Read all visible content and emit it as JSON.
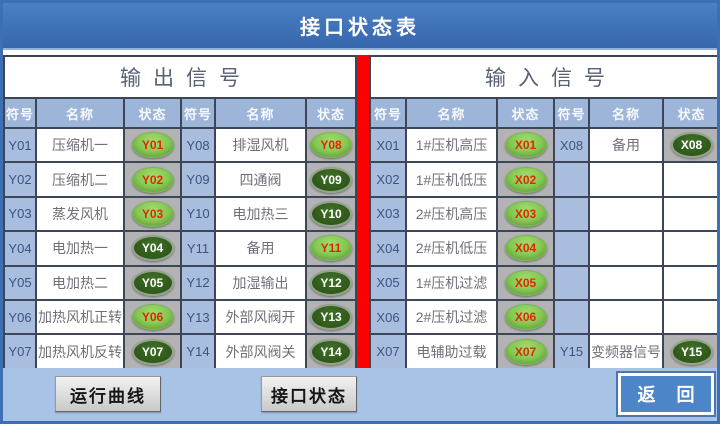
{
  "title": "接口状态表",
  "sections": {
    "output": "输出信号",
    "input": "输入信号"
  },
  "columns": [
    "符号",
    "名称",
    "状态"
  ],
  "groups": [
    {
      "rows": [
        {
          "symbol": "Y01",
          "label": "压缩机一",
          "state": "on"
        },
        {
          "symbol": "Y02",
          "label": "压缩机二",
          "state": "on"
        },
        {
          "symbol": "Y03",
          "label": "蒸发风机",
          "state": "on"
        },
        {
          "symbol": "Y04",
          "label": "电加热一",
          "state": "off"
        },
        {
          "symbol": "Y05",
          "label": "电加热二",
          "state": "off"
        },
        {
          "symbol": "Y06",
          "label": "加热风机正转",
          "state": "on"
        },
        {
          "symbol": "Y07",
          "label": "加热风机反转",
          "state": "off"
        }
      ]
    },
    {
      "rows": [
        {
          "symbol": "Y08",
          "label": "排湿风机",
          "state": "on"
        },
        {
          "symbol": "Y09",
          "label": "四通阀",
          "state": "off"
        },
        {
          "symbol": "Y10",
          "label": "电加热三",
          "state": "off"
        },
        {
          "symbol": "Y11",
          "label": "备用",
          "state": "on"
        },
        {
          "symbol": "Y12",
          "label": "加湿输出",
          "state": "off"
        },
        {
          "symbol": "Y13",
          "label": "外部风阀开",
          "state": "off"
        },
        {
          "symbol": "Y14",
          "label": "外部风阀关",
          "state": "off"
        }
      ]
    },
    {
      "rows": [
        {
          "symbol": "X01",
          "label": "1#压机高压",
          "state": "on"
        },
        {
          "symbol": "X02",
          "label": "1#压机低压",
          "state": "on"
        },
        {
          "symbol": "X03",
          "label": "2#压机高压",
          "state": "on"
        },
        {
          "symbol": "X04",
          "label": "2#压机低压",
          "state": "on"
        },
        {
          "symbol": "X05",
          "label": "1#压机过滤",
          "state": "on"
        },
        {
          "symbol": "X06",
          "label": "2#压机过滤",
          "state": "on"
        },
        {
          "symbol": "X07",
          "label": "电辅助过载",
          "state": "on"
        }
      ]
    },
    {
      "rows": [
        {
          "symbol": "X08",
          "label": "备用",
          "state": "off"
        },
        {
          "symbol": "",
          "label": "",
          "state": "none"
        },
        {
          "symbol": "",
          "label": "",
          "state": "none"
        },
        {
          "symbol": "",
          "label": "",
          "state": "none"
        },
        {
          "symbol": "",
          "label": "",
          "state": "none"
        },
        {
          "symbol": "",
          "label": "",
          "state": "none"
        },
        {
          "symbol": "Y15",
          "label": "变频器信号",
          "state": "off"
        }
      ]
    }
  ],
  "footer": {
    "curve_button": "运行曲线",
    "status_button": "接口状态",
    "return_button": "返 回"
  },
  "colors": {
    "accent_blue": "#3d6fb4",
    "header_light_blue": "#9db5d8",
    "lamp_on": "#7dc847",
    "lamp_off": "#2e5a1a",
    "lamp_on_text": "#e02800",
    "divider_red": "#fb0200",
    "status_cell_gray": "#b3b3b5",
    "footer_blue": "#a9c3e6"
  }
}
